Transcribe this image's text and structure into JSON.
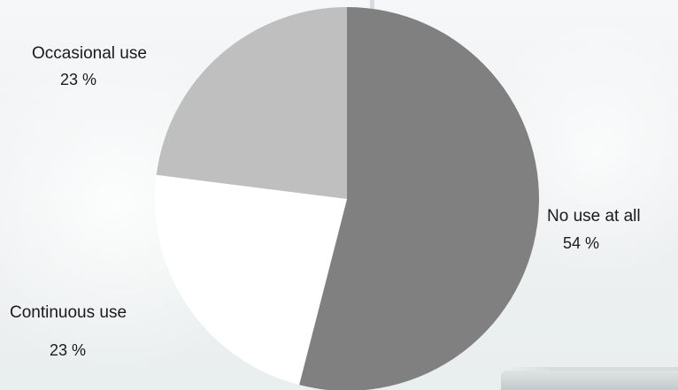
{
  "chart_data": {
    "type": "pie",
    "title": "",
    "slices": [
      {
        "label": "No use at all",
        "value": 54,
        "value_label": "54 %",
        "color": "#808080"
      },
      {
        "label": "Continuous use",
        "value": 23,
        "value_label": "23 %",
        "color": "#ffffff"
      },
      {
        "label": "Occasional use",
        "value": 23,
        "value_label": "23 %",
        "color": "#bfbfbf"
      }
    ],
    "start_angle_deg": 0,
    "direction": "clockwise",
    "legend": "none",
    "data_labels": "outside"
  }
}
